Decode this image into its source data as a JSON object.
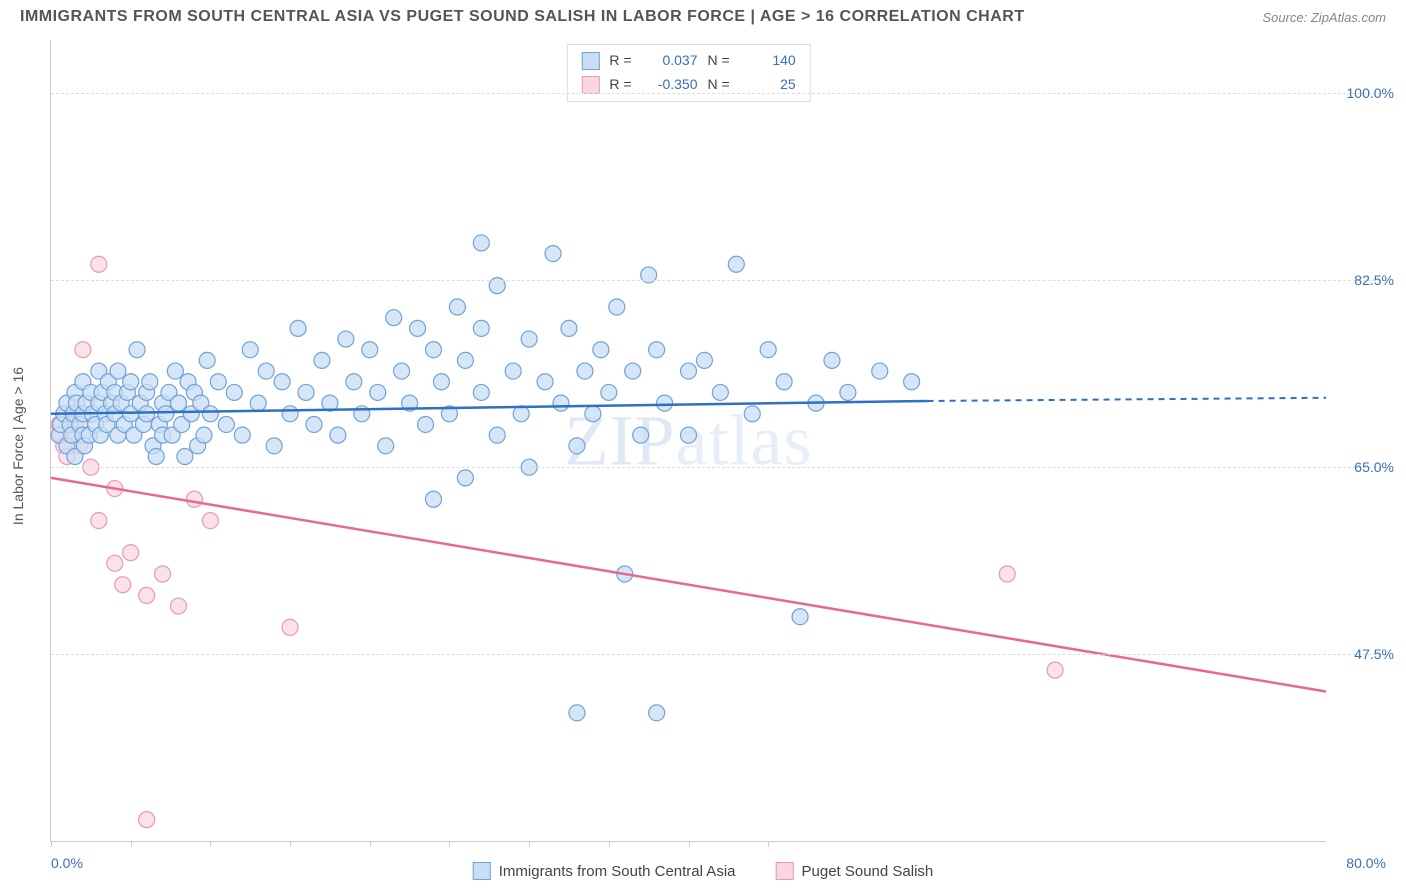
{
  "header": {
    "title": "IMMIGRANTS FROM SOUTH CENTRAL ASIA VS PUGET SOUND SALISH IN LABOR FORCE | AGE > 16 CORRELATION CHART",
    "source": "Source: ZipAtlas.com"
  },
  "watermark": "ZIPatlas",
  "chart": {
    "type": "scatter",
    "y_axis_title": "In Labor Force | Age > 16",
    "xlim": [
      0,
      80
    ],
    "ylim": [
      30,
      105
    ],
    "y_gridlines": [
      47.5,
      65.0,
      82.5,
      100.0
    ],
    "y_tick_labels": [
      "47.5%",
      "65.0%",
      "82.5%",
      "100.0%"
    ],
    "x_ticks": [
      0,
      5,
      10,
      15,
      20,
      25,
      30,
      35,
      40,
      45
    ],
    "x_tick_labels": {
      "left": "0.0%",
      "right": "80.0%"
    },
    "background_color": "#ffffff",
    "grid_color": "#dddddd",
    "axis_color": "#cccccc",
    "label_color": "#3b6fb6",
    "series": {
      "blue": {
        "name": "Immigrants from South Central Asia",
        "fill_color": "#c9ddf4",
        "stroke_color": "#6fa3d9",
        "line_color": "#2f6fc4",
        "R": "0.037",
        "N": "140",
        "marker_radius": 8,
        "regression": {
          "x1": 0,
          "y1": 70.0,
          "x2": 55,
          "y2": 71.2,
          "dash_to_x": 80,
          "dash_to_y": 71.5
        },
        "points": [
          [
            0.5,
            68
          ],
          [
            0.6,
            69
          ],
          [
            0.8,
            70
          ],
          [
            1,
            67
          ],
          [
            1,
            71
          ],
          [
            1.2,
            69
          ],
          [
            1.3,
            68
          ],
          [
            1.4,
            70
          ],
          [
            1.5,
            72
          ],
          [
            1.5,
            66
          ],
          [
            1.6,
            71
          ],
          [
            1.8,
            69
          ],
          [
            2,
            68
          ],
          [
            2,
            70
          ],
          [
            2,
            73
          ],
          [
            2.1,
            67
          ],
          [
            2.2,
            71
          ],
          [
            2.4,
            68
          ],
          [
            2.5,
            72
          ],
          [
            2.6,
            70
          ],
          [
            2.8,
            69
          ],
          [
            3,
            71
          ],
          [
            3,
            74
          ],
          [
            3.1,
            68
          ],
          [
            3.2,
            72
          ],
          [
            3.4,
            70
          ],
          [
            3.5,
            69
          ],
          [
            3.6,
            73
          ],
          [
            3.8,
            71
          ],
          [
            4,
            70
          ],
          [
            4,
            72
          ],
          [
            4.2,
            68
          ],
          [
            4.2,
            74
          ],
          [
            4.4,
            71
          ],
          [
            4.6,
            69
          ],
          [
            4.8,
            72
          ],
          [
            5,
            73
          ],
          [
            5,
            70
          ],
          [
            5.2,
            68
          ],
          [
            5.4,
            76
          ],
          [
            5.6,
            71
          ],
          [
            5.8,
            69
          ],
          [
            6,
            72
          ],
          [
            6,
            70
          ],
          [
            6.2,
            73
          ],
          [
            6.4,
            67
          ],
          [
            6.6,
            66
          ],
          [
            6.8,
            69
          ],
          [
            7,
            71
          ],
          [
            7,
            68
          ],
          [
            7.2,
            70
          ],
          [
            7.4,
            72
          ],
          [
            7.6,
            68
          ],
          [
            7.8,
            74
          ],
          [
            8,
            71
          ],
          [
            8.2,
            69
          ],
          [
            8.4,
            66
          ],
          [
            8.6,
            73
          ],
          [
            8.8,
            70
          ],
          [
            9,
            72
          ],
          [
            9.2,
            67
          ],
          [
            9.4,
            71
          ],
          [
            9.6,
            68
          ],
          [
            9.8,
            75
          ],
          [
            10,
            70
          ],
          [
            10.5,
            73
          ],
          [
            11,
            69
          ],
          [
            11.5,
            72
          ],
          [
            12,
            68
          ],
          [
            12.5,
            76
          ],
          [
            13,
            71
          ],
          [
            13.5,
            74
          ],
          [
            14,
            67
          ],
          [
            14.5,
            73
          ],
          [
            15,
            70
          ],
          [
            15.5,
            78
          ],
          [
            16,
            72
          ],
          [
            16.5,
            69
          ],
          [
            17,
            75
          ],
          [
            17.5,
            71
          ],
          [
            18,
            68
          ],
          [
            18.5,
            77
          ],
          [
            19,
            73
          ],
          [
            19.5,
            70
          ],
          [
            20,
            76
          ],
          [
            20.5,
            72
          ],
          [
            21,
            67
          ],
          [
            21.5,
            79
          ],
          [
            22,
            74
          ],
          [
            22.5,
            71
          ],
          [
            23,
            78
          ],
          [
            23.5,
            69
          ],
          [
            24,
            76
          ],
          [
            24.5,
            73
          ],
          [
            25,
            70
          ],
          [
            25.5,
            80
          ],
          [
            26,
            75
          ],
          [
            26,
            64
          ],
          [
            27,
            78
          ],
          [
            27,
            72
          ],
          [
            28,
            68
          ],
          [
            28,
            82
          ],
          [
            29,
            74
          ],
          [
            29.5,
            70
          ],
          [
            30,
            77
          ],
          [
            30,
            65
          ],
          [
            31,
            73
          ],
          [
            31.5,
            85
          ],
          [
            32,
            71
          ],
          [
            32.5,
            78
          ],
          [
            33,
            67
          ],
          [
            33.5,
            74
          ],
          [
            34,
            70
          ],
          [
            34.5,
            76
          ],
          [
            35,
            72
          ],
          [
            35.5,
            80
          ],
          [
            36,
            55
          ],
          [
            36.5,
            74
          ],
          [
            37,
            68
          ],
          [
            37.5,
            83
          ],
          [
            38,
            76
          ],
          [
            38.5,
            71
          ],
          [
            40,
            74
          ],
          [
            40,
            68
          ],
          [
            41,
            75
          ],
          [
            42,
            72
          ],
          [
            43,
            84
          ],
          [
            44,
            70
          ],
          [
            45,
            76
          ],
          [
            46,
            73
          ],
          [
            47,
            51
          ],
          [
            48,
            71
          ],
          [
            49,
            75
          ],
          [
            50,
            72
          ],
          [
            52,
            74
          ],
          [
            54,
            73
          ],
          [
            27,
            86
          ],
          [
            33,
            42
          ],
          [
            38,
            42
          ],
          [
            24,
            62
          ]
        ]
      },
      "pink": {
        "name": "Puget Sound Salish",
        "fill_color": "#f9d7e0",
        "stroke_color": "#e79bb2",
        "line_color": "#e56b8e",
        "R": "-0.350",
        "N": "25",
        "marker_radius": 8,
        "regression": {
          "x1": 0,
          "y1": 64,
          "x2": 80,
          "y2": 44
        },
        "points": [
          [
            0.5,
            69
          ],
          [
            0.6,
            68
          ],
          [
            0.8,
            67
          ],
          [
            1,
            70
          ],
          [
            1,
            66
          ],
          [
            1.2,
            68
          ],
          [
            1.5,
            69
          ],
          [
            1.8,
            67
          ],
          [
            2,
            76
          ],
          [
            2.5,
            65
          ],
          [
            3,
            60
          ],
          [
            3,
            84
          ],
          [
            4,
            56
          ],
          [
            4.5,
            54
          ],
          [
            5,
            57
          ],
          [
            6,
            53
          ],
          [
            7,
            55
          ],
          [
            8,
            52
          ],
          [
            9,
            62
          ],
          [
            10,
            60
          ],
          [
            15,
            50
          ],
          [
            60,
            55
          ],
          [
            63,
            46
          ],
          [
            6,
            32
          ],
          [
            4,
            63
          ]
        ]
      }
    }
  },
  "legend_bottom": {
    "series1_label": "Immigrants from South Central Asia",
    "series2_label": "Puget Sound Salish"
  },
  "legend_top": {
    "r_label": "R =",
    "n_label": "N ="
  }
}
